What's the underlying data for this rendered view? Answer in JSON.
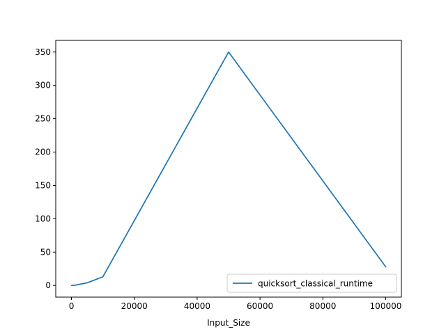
{
  "chart_data": {
    "type": "line",
    "title": "",
    "xlabel": "Input_Size",
    "ylabel": "",
    "xlim": [
      -5000,
      105000
    ],
    "ylim": [
      -17.5,
      367.5
    ],
    "xticks": [
      0,
      20000,
      40000,
      60000,
      80000,
      100000
    ],
    "xtick_labels": [
      "0",
      "20000",
      "40000",
      "60000",
      "80000",
      "100000"
    ],
    "yticks": [
      0,
      50,
      100,
      150,
      200,
      250,
      300,
      350
    ],
    "ytick_labels": [
      "0",
      "50",
      "100",
      "150",
      "200",
      "250",
      "300",
      "350"
    ],
    "grid": false,
    "legend_position": "lower-right",
    "series": [
      {
        "name": "quicksort_classical_runtime",
        "color": "#1f77b4",
        "x": [
          100,
          1000,
          5000,
          10000,
          50000,
          100000
        ],
        "y": [
          0.01,
          0.2,
          4,
          13,
          350,
          28
        ]
      }
    ]
  }
}
